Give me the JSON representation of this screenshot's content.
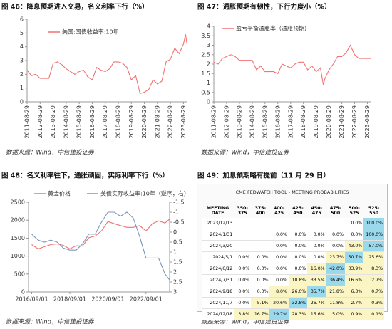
{
  "chart_data": [
    {
      "type": "line",
      "title": "图 46：降息预期进入交易，名义利率下行（%）",
      "source": "数据来源：Wind，中信建投证券",
      "x": [
        "2011-08-29",
        "2011-12-29",
        "2012-04-29",
        "2012-08-29",
        "2012-12-29",
        "2013-04-29",
        "2013-08-29",
        "2013-12-29",
        "2014-04-29",
        "2014-08-29",
        "2014-12-29",
        "2015-04-29",
        "2015-08-29",
        "2015-12-29",
        "2016-04-29",
        "2016-08-29",
        "2016-12-29",
        "2017-04-29",
        "2017-08-29",
        "2017-12-29",
        "2018-04-29",
        "2018-08-29",
        "2018-12-29",
        "2019-04-29",
        "2019-08-29",
        "2019-12-29",
        "2020-04-29",
        "2020-08-29",
        "2020-12-29",
        "2021-04-29",
        "2021-08-29",
        "2021-12-29",
        "2022-04-29",
        "2022-08-29",
        "2022-12-29",
        "2023-04-29",
        "2023-08-29",
        "2023-10-29",
        "2023-11-29"
      ],
      "series": [
        {
          "name": "美国:国债收益率:10年",
          "color": "#f07272",
          "values": [
            2.3,
            1.9,
            2.0,
            1.7,
            1.7,
            1.7,
            2.8,
            2.9,
            2.7,
            2.4,
            2.2,
            2.0,
            2.2,
            2.3,
            1.8,
            1.6,
            2.5,
            2.3,
            2.2,
            2.4,
            2.9,
            2.9,
            2.8,
            2.5,
            1.6,
            1.9,
            0.6,
            0.7,
            0.9,
            1.6,
            1.3,
            1.5,
            2.9,
            3.1,
            3.9,
            3.5,
            4.2,
            4.9,
            4.3
          ]
        }
      ],
      "xlim": [
        "2011-08-29",
        "2023-11-29"
      ],
      "xticks": [
        "2011-08-29",
        "2012-08-29",
        "2013-08-29",
        "2014-08-29",
        "2015-08-29",
        "2016-08-29",
        "2017-08-29",
        "2018-08-29",
        "2019-08-29",
        "2020-08-29",
        "2021-08-29",
        "2022-08-29",
        "2023-08-29"
      ],
      "ylim": [
        0,
        6
      ],
      "yticks": [
        0,
        1,
        2,
        3,
        4,
        5,
        6
      ],
      "legend": "top-left"
    },
    {
      "type": "line",
      "title": "图 47：通胀预期有韧性，下行力度小（%）",
      "source": "数据来源：Wind，中信建投证券",
      "x": [
        "2011-08-29",
        "2011-12-29",
        "2012-04-29",
        "2012-08-29",
        "2012-12-29",
        "2013-04-29",
        "2013-08-29",
        "2013-12-29",
        "2014-04-29",
        "2014-08-29",
        "2014-12-29",
        "2015-04-29",
        "2015-08-29",
        "2015-12-29",
        "2016-04-29",
        "2016-08-29",
        "2016-12-29",
        "2017-04-29",
        "2017-08-29",
        "2017-12-29",
        "2018-04-29",
        "2018-08-29",
        "2018-12-29",
        "2019-04-29",
        "2019-08-29",
        "2019-12-29",
        "2020-03-19",
        "2020-04-29",
        "2020-08-29",
        "2020-12-29",
        "2021-04-29",
        "2021-08-29",
        "2021-12-29",
        "2022-04-29",
        "2022-08-29",
        "2022-12-29",
        "2023-04-29",
        "2023-08-29",
        "2023-11-29"
      ],
      "series": [
        {
          "name": "盈亏平衡通胀率（通胀预期）",
          "color": "#f07272",
          "values": [
            2.1,
            2.0,
            2.3,
            2.4,
            2.5,
            2.4,
            2.2,
            2.2,
            2.2,
            2.2,
            1.7,
            1.9,
            1.6,
            1.6,
            1.6,
            1.5,
            2.0,
            1.9,
            1.8,
            2.0,
            2.1,
            2.1,
            1.7,
            1.9,
            1.6,
            1.8,
            0.9,
            1.2,
            1.7,
            2.0,
            2.4,
            2.4,
            2.6,
            3.0,
            2.5,
            2.3,
            2.3,
            2.3,
            2.3
          ]
        }
      ],
      "xlim": [
        "2011-08-29",
        "2023-11-29"
      ],
      "xticks": [
        "2011-08-29",
        "2012-08-29",
        "2013-08-29",
        "2014-08-29",
        "2015-08-29",
        "2016-08-29",
        "2017-08-29",
        "2018-08-29",
        "2019-08-29",
        "2020-08-29",
        "2021-08-29",
        "2022-08-29",
        "2023-08-29"
      ],
      "ylim": [
        0,
        4
      ],
      "yticks": [
        0,
        0.5,
        1,
        1.5,
        2,
        2.5,
        3,
        3.5,
        4
      ],
      "legend": "top-left"
    },
    {
      "type": "line",
      "title": "图 48：名义利率往下，通胀顽固，实际利率下行（%）",
      "source": "数据来源：Wind，中信建投证券",
      "x": [
        "2016/09/01",
        "2017/01/01",
        "2017/05/01",
        "2017/09/01",
        "2018/01/01",
        "2018/05/01",
        "2018/09/01",
        "2019/01/01",
        "2019/05/01",
        "2019/09/01",
        "2020/01/01",
        "2020/05/01",
        "2020/09/01",
        "2021/01/01",
        "2021/05/01",
        "2021/09/01",
        "2022/01/01",
        "2022/05/01",
        "2022/09/01",
        "2023/01/01",
        "2023/05/01",
        "2023/09/01",
        "2023/11/29"
      ],
      "series": [
        {
          "name": "黄金价格",
          "color": "#f07272",
          "values": [
            1320,
            1200,
            1260,
            1320,
            1340,
            1300,
            1200,
            1290,
            1280,
            1510,
            1560,
            1700,
            1960,
            1900,
            1850,
            1800,
            1800,
            1850,
            1700,
            1900,
            1980,
            1920,
            2030
          ]
        },
        {
          "name": "美债实际收益率:10年（逆序，右）",
          "color": "#7b97b8",
          "axis": "y2",
          "values": [
            0.1,
            0.4,
            0.5,
            0.4,
            0.5,
            0.8,
            0.9,
            0.9,
            0.6,
            0.1,
            0.1,
            -0.5,
            -1.0,
            -1.0,
            -0.8,
            -1.0,
            -0.7,
            0.2,
            1.3,
            1.3,
            1.3,
            2.1,
            2.4
          ]
        }
      ],
      "xlim": [
        "2016/07/01",
        "2023/11/29"
      ],
      "xticks": [
        "2016/09/01",
        "2018/09/01",
        "2020/09/01",
        "2022/09/01"
      ],
      "ylim": [
        0,
        2500
      ],
      "yticks": [
        0,
        500,
        1000,
        1500,
        2000,
        2500
      ],
      "y2lim": [
        -1.5,
        3
      ],
      "y2_reversed": true,
      "y2ticks": [
        -1.5,
        -1,
        -0.5,
        0,
        0.5,
        1,
        1.5,
        2,
        2.5,
        3
      ],
      "legend": "top-left"
    }
  ],
  "table": {
    "caption": "图 49：加息预期略有提前（11 月 29 日）",
    "source": "数据来源：Wind，中信建投证券",
    "title": "CME FEDWATCH TOOL - MEETING PROBABILITIES",
    "columns": [
      "MEETING DATE",
      "350-375",
      "375-400",
      "400-425",
      "425-450",
      "450-475",
      "475-500",
      "500-525",
      "525-550"
    ],
    "rows": [
      [
        "2023/12/13",
        null,
        null,
        null,
        null,
        null,
        null,
        "0.0%",
        "100.0%"
      ],
      [
        "2024/1/31",
        null,
        null,
        "0.0%",
        "0.0%",
        "0.0%",
        "0.0%",
        "0.0%",
        "100.0%"
      ],
      [
        "2024/3/20",
        null,
        null,
        "0.0%",
        "0.0%",
        "0.0%",
        "0.0%",
        "43.0%",
        "57.0%"
      ],
      [
        "2024/5/1",
        "0.0%",
        "0.0%",
        "0.0%",
        "0.0%",
        "0.0%",
        "23.7%",
        "50.7%",
        "25.6%"
      ],
      [
        "2024/6/12",
        "0.0%",
        "0.0%",
        "0.0%",
        "0.0%",
        "16.0%",
        "42.0%",
        "33.9%",
        "8.3%"
      ],
      [
        "2024/7/31",
        "0.0%",
        "0.0%",
        "0.0%",
        "10.8%",
        "33.5%",
        "36.4%",
        "16.6%",
        "2.7%"
      ],
      [
        "2024/9/18",
        "0.0%",
        "0.0%",
        "8.0%",
        "26.0%",
        "35.7%",
        "21.8%",
        "6.3%",
        "0.7%"
      ],
      [
        "2024/11/7",
        "0.0%",
        "5.1%",
        "20.6%",
        "32.8%",
        "26.7%",
        "11.8%",
        "2.7%",
        "0.3%"
      ],
      [
        "2024/12/18",
        "3.8%",
        "16.7%",
        "29.7%",
        "28.3%",
        "15.6%",
        "5.0%",
        "0.9%",
        "0.1%"
      ]
    ]
  }
}
